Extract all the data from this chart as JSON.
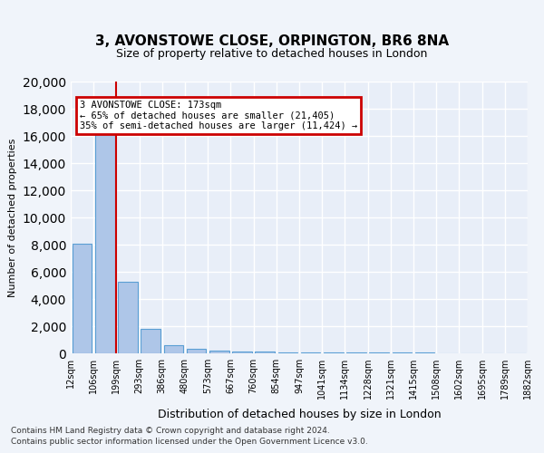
{
  "title1": "3, AVONSTOWE CLOSE, ORPINGTON, BR6 8NA",
  "title2": "Size of property relative to detached houses in London",
  "xlabel": "Distribution of detached houses by size in London",
  "ylabel": "Number of detached properties",
  "footer1": "Contains HM Land Registry data © Crown copyright and database right 2024.",
  "footer2": "Contains public sector information licensed under the Open Government Licence v3.0.",
  "bin_edges": [
    "12sqm",
    "106sqm",
    "199sqm",
    "293sqm",
    "386sqm",
    "480sqm",
    "573sqm",
    "667sqm",
    "760sqm",
    "854sqm",
    "947sqm",
    "1041sqm",
    "1134sqm",
    "1228sqm",
    "1321sqm",
    "1415sqm",
    "1508sqm",
    "1602sqm",
    "1695sqm",
    "1789sqm",
    "1882sqm"
  ],
  "bar_heights": [
    8050,
    16600,
    5300,
    1800,
    620,
    330,
    220,
    150,
    130,
    100,
    80,
    60,
    50,
    45,
    40,
    35,
    30,
    25,
    20,
    15
  ],
  "bar_color": "#aec6e8",
  "bar_edge_color": "#5a9fd4",
  "vline_x_index": 2,
  "vline_color": "#cc0000",
  "annotation_text": "3 AVONSTOWE CLOSE: 173sqm\n← 65% of detached houses are smaller (21,405)\n35% of semi-detached houses are larger (11,424) →",
  "annotation_box_color": "#cc0000",
  "ylim": [
    0,
    20000
  ],
  "yticks": [
    0,
    2000,
    4000,
    6000,
    8000,
    10000,
    12000,
    14000,
    16000,
    18000,
    20000
  ],
  "background_color": "#f0f4fa",
  "plot_background": "#e8eef8",
  "grid_color": "#ffffff"
}
